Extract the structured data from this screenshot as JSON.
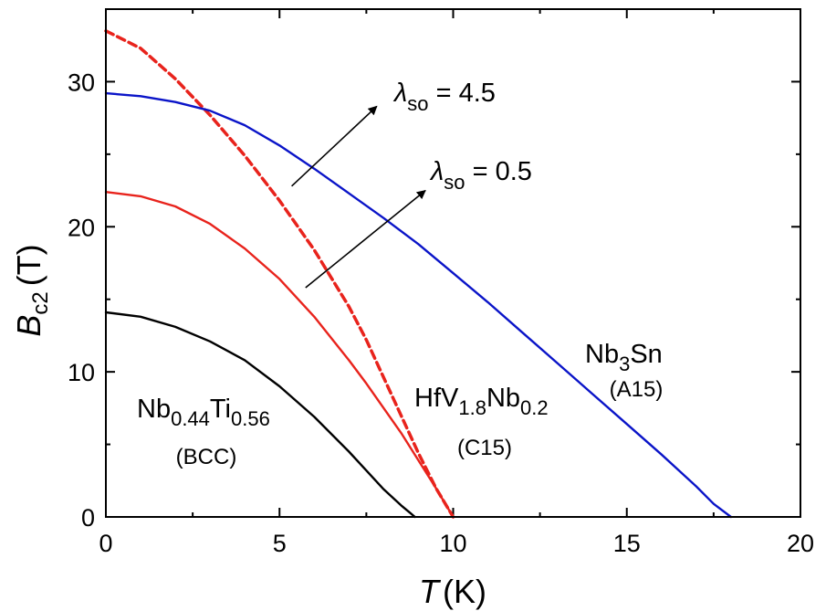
{
  "chart_data": {
    "type": "line",
    "xlabel": {
      "symbol": "T",
      "unit": "(K)"
    },
    "ylabel": {
      "symbol": "B",
      "sub": "c2",
      "unit": "(T)"
    },
    "xlim": [
      0,
      20
    ],
    "ylim": [
      0,
      35
    ],
    "xticks": [
      0,
      5,
      10,
      15,
      20
    ],
    "yticks": [
      0,
      10,
      20,
      30
    ],
    "grid": false,
    "series": [
      {
        "key": "nbti",
        "color": "#000000",
        "style": "solid",
        "x": [
          0,
          1,
          2,
          3,
          4,
          5,
          6,
          7,
          7.5,
          8,
          8.5,
          8.75,
          8.9
        ],
        "y": [
          14.1,
          13.8,
          13.1,
          12.1,
          10.8,
          9.0,
          6.9,
          4.5,
          3.2,
          1.9,
          0.8,
          0.3,
          0.0
        ]
      },
      {
        "key": "hfv",
        "color": "#e8231c",
        "style": "solid",
        "x": [
          0,
          1,
          2,
          3,
          4,
          5,
          6,
          7,
          7.5,
          8,
          8.5,
          9,
          9.5,
          9.8,
          10.0
        ],
        "y": [
          22.4,
          22.1,
          21.4,
          20.2,
          18.5,
          16.4,
          13.8,
          10.8,
          9.2,
          7.5,
          5.8,
          3.9,
          2.0,
          0.8,
          0.0
        ]
      },
      {
        "key": "hfv_so",
        "color": "#e8231c",
        "style": "dashed",
        "x": [
          0,
          1,
          2,
          3,
          4,
          5,
          6,
          7,
          7.5,
          8,
          8.5,
          9,
          9.5,
          9.8,
          10.0
        ],
        "y": [
          33.5,
          32.3,
          30.2,
          27.7,
          24.9,
          21.8,
          18.4,
          14.5,
          12.2,
          9.6,
          7.0,
          4.4,
          2.0,
          0.8,
          0.0
        ]
      },
      {
        "key": "nb3sn",
        "color": "#0a14c8",
        "style": "solid",
        "x": [
          0,
          1,
          2,
          3,
          4,
          5,
          6,
          7,
          8,
          9,
          10,
          11,
          12,
          13,
          14,
          15,
          16,
          17,
          17.5,
          18.0
        ],
        "y": [
          29.2,
          29.0,
          28.6,
          28.0,
          27.0,
          25.6,
          24.0,
          22.3,
          20.6,
          18.8,
          16.8,
          14.8,
          12.7,
          10.6,
          8.5,
          6.4,
          4.3,
          2.1,
          0.9,
          0.0
        ]
      }
    ],
    "annotations": {
      "nbti": {
        "main": "Nb",
        "s1": "0.44",
        "mid": "Ti",
        "s2": "0.56",
        "phase": "(BCC)"
      },
      "hfv": {
        "main": "HfV",
        "s1": "1.8",
        "mid": "Nb",
        "s2": "0.2",
        "phase": "(C15)"
      },
      "nb3sn": {
        "main": "Nb",
        "s1": "3",
        "mid": "Sn",
        "phase": "(A15)"
      },
      "lambda_high": {
        "symbol": "λ",
        "sub": "so",
        "text": " = 4.5"
      },
      "lambda_low": {
        "symbol": "λ",
        "sub": "so",
        "text": " = 0.5"
      }
    },
    "arrows": [
      {
        "from": [
          5.35,
          22.8
        ],
        "to": [
          7.8,
          28.3
        ]
      },
      {
        "from": [
          5.75,
          15.8
        ],
        "to": [
          9.2,
          22.5
        ]
      }
    ]
  }
}
